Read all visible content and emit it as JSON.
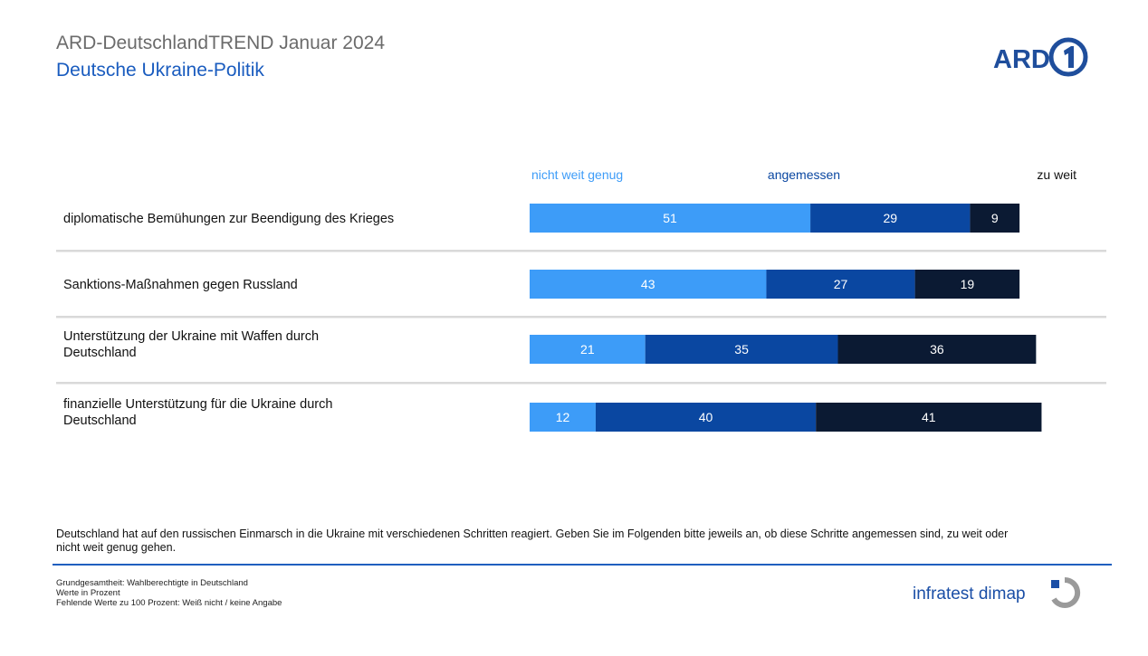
{
  "header": {
    "title": "ARD-DeutschlandTREND Januar 2024",
    "subtitle": "Deutsche Ukraine-Politik",
    "logo_text": "ARD"
  },
  "colors": {
    "nicht_weit_genug": "#3d9cf8",
    "angemessen": "#0a47a1",
    "zu_weit": "#0b1a33",
    "separator": "#d9d9d9",
    "header_blue": "#1a5cbf",
    "footer_line": "#1f5fbf"
  },
  "chart_data": {
    "type": "bar",
    "orientation": "horizontal",
    "stacked": true,
    "categories": [
      [
        "diplomatische Bemühungen zur Beendigung des Krieges"
      ],
      [
        "Sanktions-Maßnahmen gegen Russland"
      ],
      [
        "Unterstützung der Ukraine mit Waffen durch",
        "Deutschland"
      ],
      [
        "finanzielle Unterstützung für die Ukraine durch",
        "Deutschland"
      ]
    ],
    "series": [
      {
        "name": "nicht weit genug",
        "color": "#3d9cf8",
        "values": [
          51,
          43,
          21,
          12
        ]
      },
      {
        "name": "angemessen",
        "color": "#0a47a1",
        "values": [
          29,
          27,
          35,
          40
        ]
      },
      {
        "name": "zu weit",
        "color": "#0b1a33",
        "values": [
          9,
          19,
          36,
          41
        ]
      }
    ],
    "xlim": [
      0,
      100
    ],
    "unit": "Prozent",
    "legend_position": "top",
    "data_labels": true
  },
  "question": "Deutschland hat auf den russischen Einmarsch in die Ukraine mit verschiedenen Schritten reagiert. Geben Sie im Folgenden bitte jeweils an, ob diese Schritte angemessen sind, zu weit oder nicht weit genug gehen.",
  "footnotes": [
    "Grundgesamtheit: Wahlberechtigte in Deutschland",
    "Werte in Prozent",
    "Fehlende Werte zu 100 Prozent: Weiß nicht / keine Angabe"
  ],
  "branding": {
    "institute": "infratest dimap"
  }
}
